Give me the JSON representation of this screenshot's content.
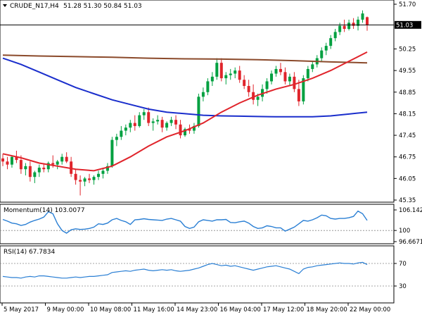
{
  "main_panel": {
    "symbol": "CRUDE_N17,H4",
    "ohlc": "51.28 51.30 50.84 51.03",
    "price_label": "51.03",
    "colors": {
      "up": "#00a040",
      "down": "#e0242b",
      "sma20": "#e0242b",
      "sma100": "#1a2ecc",
      "sma200": "#8b4a2b",
      "current_price_line": "#000000"
    }
  },
  "momentum_panel": {
    "label": "Momentum(14) 103.0077",
    "line_color": "#2a7fd4"
  },
  "rsi_panel": {
    "label": "RSI(14) 67.7834",
    "line_color": "#2a7fd4"
  },
  "chart_data": [
    {
      "type": "candlestick",
      "symbol": "CRUDE_N17",
      "timeframe": "H4",
      "ylim": [
        45.35,
        51.7
      ],
      "yticks": [
        "51.70",
        "50.25",
        "49.55",
        "48.85",
        "48.15",
        "47.45",
        "46.75",
        "46.05",
        "45.35"
      ],
      "current_price": 51.03,
      "candles": [
        [
          46.7,
          46.85,
          46.45,
          46.6
        ],
        [
          46.6,
          46.75,
          46.35,
          46.5
        ],
        [
          46.5,
          46.8,
          46.4,
          46.75
        ],
        [
          46.75,
          46.95,
          46.55,
          46.65
        ],
        [
          46.65,
          46.8,
          46.2,
          46.35
        ],
        [
          46.35,
          46.55,
          46.15,
          46.45
        ],
        [
          46.45,
          46.6,
          45.95,
          46.1
        ],
        [
          46.1,
          46.3,
          45.9,
          46.25
        ],
        [
          46.25,
          46.5,
          46.1,
          46.4
        ],
        [
          46.4,
          46.55,
          46.25,
          46.35
        ],
        [
          46.35,
          46.6,
          46.25,
          46.55
        ],
        [
          46.55,
          46.8,
          46.4,
          46.5
        ],
        [
          46.5,
          46.65,
          46.35,
          46.6
        ],
        [
          46.6,
          46.85,
          46.5,
          46.75
        ],
        [
          46.75,
          46.9,
          46.55,
          46.6
        ],
        [
          46.6,
          46.75,
          46.1,
          46.2
        ],
        [
          46.2,
          46.35,
          45.85,
          46.0
        ],
        [
          46.0,
          46.15,
          45.5,
          45.95
        ],
        [
          45.95,
          46.1,
          45.8,
          46.05
        ],
        [
          46.05,
          46.2,
          45.9,
          46.0
        ],
        [
          46.0,
          46.15,
          45.85,
          46.1
        ],
        [
          46.1,
          46.3,
          46.0,
          46.2
        ],
        [
          46.2,
          46.4,
          46.05,
          46.3
        ],
        [
          46.3,
          46.55,
          46.2,
          46.45
        ],
        [
          46.45,
          47.4,
          46.4,
          47.3
        ],
        [
          47.3,
          47.5,
          47.1,
          47.4
        ],
        [
          47.4,
          47.75,
          47.3,
          47.6
        ],
        [
          47.6,
          47.8,
          47.45,
          47.7
        ],
        [
          47.7,
          47.95,
          47.55,
          47.85
        ],
        [
          47.85,
          48.1,
          47.6,
          47.75
        ],
        [
          47.75,
          48.2,
          47.7,
          48.1
        ],
        [
          48.1,
          48.3,
          47.95,
          48.2
        ],
        [
          48.2,
          48.35,
          47.75,
          47.85
        ],
        [
          47.85,
          48.0,
          47.6,
          47.9
        ],
        [
          47.9,
          48.1,
          47.8,
          47.95
        ],
        [
          47.95,
          48.05,
          47.55,
          47.7
        ],
        [
          47.7,
          47.9,
          47.6,
          47.85
        ],
        [
          47.85,
          48.05,
          47.75,
          47.95
        ],
        [
          47.95,
          48.1,
          47.65,
          47.8
        ],
        [
          47.8,
          47.95,
          47.35,
          47.45
        ],
        [
          47.45,
          47.7,
          47.4,
          47.65
        ],
        [
          47.65,
          47.8,
          47.5,
          47.6
        ],
        [
          47.6,
          47.85,
          47.5,
          47.75
        ],
        [
          47.75,
          48.8,
          47.7,
          48.7
        ],
        [
          48.7,
          49.0,
          48.55,
          48.85
        ],
        [
          48.85,
          49.3,
          48.75,
          49.2
        ],
        [
          49.2,
          49.5,
          49.05,
          49.35
        ],
        [
          49.35,
          49.95,
          49.25,
          49.8
        ],
        [
          49.8,
          49.95,
          49.2,
          49.3
        ],
        [
          49.3,
          49.5,
          49.1,
          49.4
        ],
        [
          49.4,
          49.6,
          49.25,
          49.45
        ],
        [
          49.45,
          49.65,
          49.3,
          49.55
        ],
        [
          49.55,
          49.7,
          49.15,
          49.25
        ],
        [
          49.25,
          49.4,
          48.95,
          49.05
        ],
        [
          49.05,
          49.25,
          48.7,
          48.85
        ],
        [
          48.85,
          49.1,
          48.45,
          48.6
        ],
        [
          48.6,
          48.8,
          48.4,
          48.7
        ],
        [
          48.7,
          49.1,
          48.55,
          48.95
        ],
        [
          48.95,
          49.3,
          48.8,
          49.2
        ],
        [
          49.2,
          49.55,
          49.1,
          49.45
        ],
        [
          49.45,
          49.7,
          49.35,
          49.6
        ],
        [
          49.6,
          49.8,
          49.4,
          49.5
        ],
        [
          49.5,
          49.65,
          49.1,
          49.2
        ],
        [
          49.2,
          49.45,
          49.05,
          49.35
        ],
        [
          49.35,
          49.5,
          48.85,
          48.95
        ],
        [
          48.95,
          49.25,
          48.4,
          48.55
        ],
        [
          48.55,
          49.4,
          48.45,
          49.3
        ],
        [
          49.3,
          49.7,
          49.2,
          49.6
        ],
        [
          49.6,
          49.85,
          49.5,
          49.75
        ],
        [
          49.75,
          50.05,
          49.65,
          49.95
        ],
        [
          49.95,
          50.3,
          49.85,
          50.2
        ],
        [
          50.2,
          50.45,
          50.05,
          50.35
        ],
        [
          50.35,
          50.7,
          50.25,
          50.6
        ],
        [
          50.6,
          50.9,
          50.5,
          50.8
        ],
        [
          50.8,
          51.1,
          50.7,
          51.0
        ],
        [
          51.0,
          51.2,
          50.8,
          50.9
        ],
        [
          50.9,
          51.2,
          50.85,
          51.1
        ],
        [
          51.1,
          51.25,
          50.9,
          51.0
        ],
        [
          51.0,
          51.3,
          50.85,
          51.2
        ],
        [
          51.2,
          51.5,
          51.1,
          51.4
        ],
        [
          51.28,
          51.3,
          50.84,
          51.03
        ]
      ],
      "sma20": [
        [
          0,
          46.85
        ],
        [
          4,
          46.72
        ],
        [
          8,
          46.55
        ],
        [
          12,
          46.45
        ],
        [
          16,
          46.35
        ],
        [
          20,
          46.3
        ],
        [
          24,
          46.45
        ],
        [
          28,
          46.75
        ],
        [
          32,
          47.1
        ],
        [
          36,
          47.4
        ],
        [
          40,
          47.6
        ],
        [
          44,
          47.85
        ],
        [
          48,
          48.2
        ],
        [
          52,
          48.5
        ],
        [
          56,
          48.75
        ],
        [
          60,
          48.95
        ],
        [
          64,
          49.1
        ],
        [
          68,
          49.3
        ],
        [
          72,
          49.55
        ],
        [
          76,
          49.85
        ],
        [
          80,
          50.15
        ]
      ],
      "sma100": [
        [
          0,
          49.95
        ],
        [
          4,
          49.75
        ],
        [
          8,
          49.5
        ],
        [
          12,
          49.25
        ],
        [
          16,
          49.0
        ],
        [
          20,
          48.8
        ],
        [
          24,
          48.6
        ],
        [
          28,
          48.45
        ],
        [
          32,
          48.3
        ],
        [
          36,
          48.2
        ],
        [
          40,
          48.15
        ],
        [
          44,
          48.1
        ],
        [
          48,
          48.08
        ],
        [
          52,
          48.07
        ],
        [
          56,
          48.06
        ],
        [
          60,
          48.05
        ],
        [
          64,
          48.05
        ],
        [
          68,
          48.05
        ],
        [
          72,
          48.08
        ],
        [
          76,
          48.14
        ],
        [
          80,
          48.2
        ]
      ],
      "sma200": [
        [
          0,
          50.05
        ],
        [
          8,
          50.02
        ],
        [
          16,
          50.0
        ],
        [
          24,
          49.98
        ],
        [
          32,
          49.95
        ],
        [
          40,
          49.93
        ],
        [
          48,
          49.92
        ],
        [
          56,
          49.9
        ],
        [
          64,
          49.87
        ],
        [
          72,
          49.83
        ],
        [
          80,
          49.8
        ]
      ]
    },
    {
      "type": "line",
      "name": "Momentum(14)",
      "ylim": [
        96.6671,
        106.142
      ],
      "yticks": [
        "106.142",
        "100",
        "96.6671"
      ],
      "reference_level": 100,
      "values": [
        103.3,
        102.8,
        102.2,
        102.0,
        101.5,
        101.8,
        102.5,
        103.0,
        103.4,
        104.0,
        105.6,
        105.0,
        102.0,
        100.0,
        99.2,
        100.2,
        100.5,
        100.3,
        100.4,
        100.6,
        101.0,
        102.0,
        101.8,
        102.2,
        103.2,
        103.6,
        103.0,
        102.6,
        101.8,
        103.2,
        103.3,
        103.5,
        103.3,
        103.2,
        103.1,
        103.0,
        103.4,
        103.6,
        103.2,
        102.8,
        101.2,
        100.6,
        101.0,
        102.6,
        103.2,
        103.0,
        102.8,
        103.2,
        103.2,
        103.3,
        102.4,
        102.3,
        102.6,
        102.8,
        102.2,
        101.2,
        100.6,
        100.8,
        101.4,
        101.2,
        100.8,
        100.8,
        99.8,
        100.4,
        101.0,
        102.0,
        103.0,
        102.8,
        103.2,
        103.8,
        104.6,
        104.4,
        103.6,
        103.4,
        103.6,
        103.6,
        103.8,
        104.2,
        105.8,
        105.0,
        103.0
      ]
    },
    {
      "type": "line",
      "name": "RSI(14)",
      "ylim": [
        0,
        100
      ],
      "yticks": [
        "70",
        "30"
      ],
      "levels": [
        70,
        30
      ],
      "values": [
        47,
        46,
        45,
        45,
        44,
        46,
        47,
        46,
        48,
        48,
        47,
        46,
        45,
        44,
        44,
        45,
        46,
        45,
        46,
        47,
        47,
        48,
        49,
        50,
        54,
        55,
        56,
        57,
        56,
        58,
        59,
        60,
        58,
        57,
        58,
        59,
        58,
        59,
        57,
        56,
        57,
        58,
        60,
        62,
        65,
        68,
        70,
        68,
        66,
        67,
        65,
        66,
        64,
        62,
        60,
        58,
        60,
        62,
        64,
        65,
        66,
        64,
        62,
        60,
        56,
        52,
        60,
        63,
        64,
        66,
        67,
        68,
        69,
        70,
        71,
        70,
        70,
        69,
        71,
        72,
        68
      ]
    }
  ],
  "time_axis": {
    "labels": [
      "5 May 2017",
      "9 May 00:00",
      "10 May 08:00",
      "11 May 16:00",
      "14 May 23:00",
      "16 May 04:00",
      "17 May 12:00",
      "18 May 20:00",
      "22 May 00:00"
    ]
  }
}
